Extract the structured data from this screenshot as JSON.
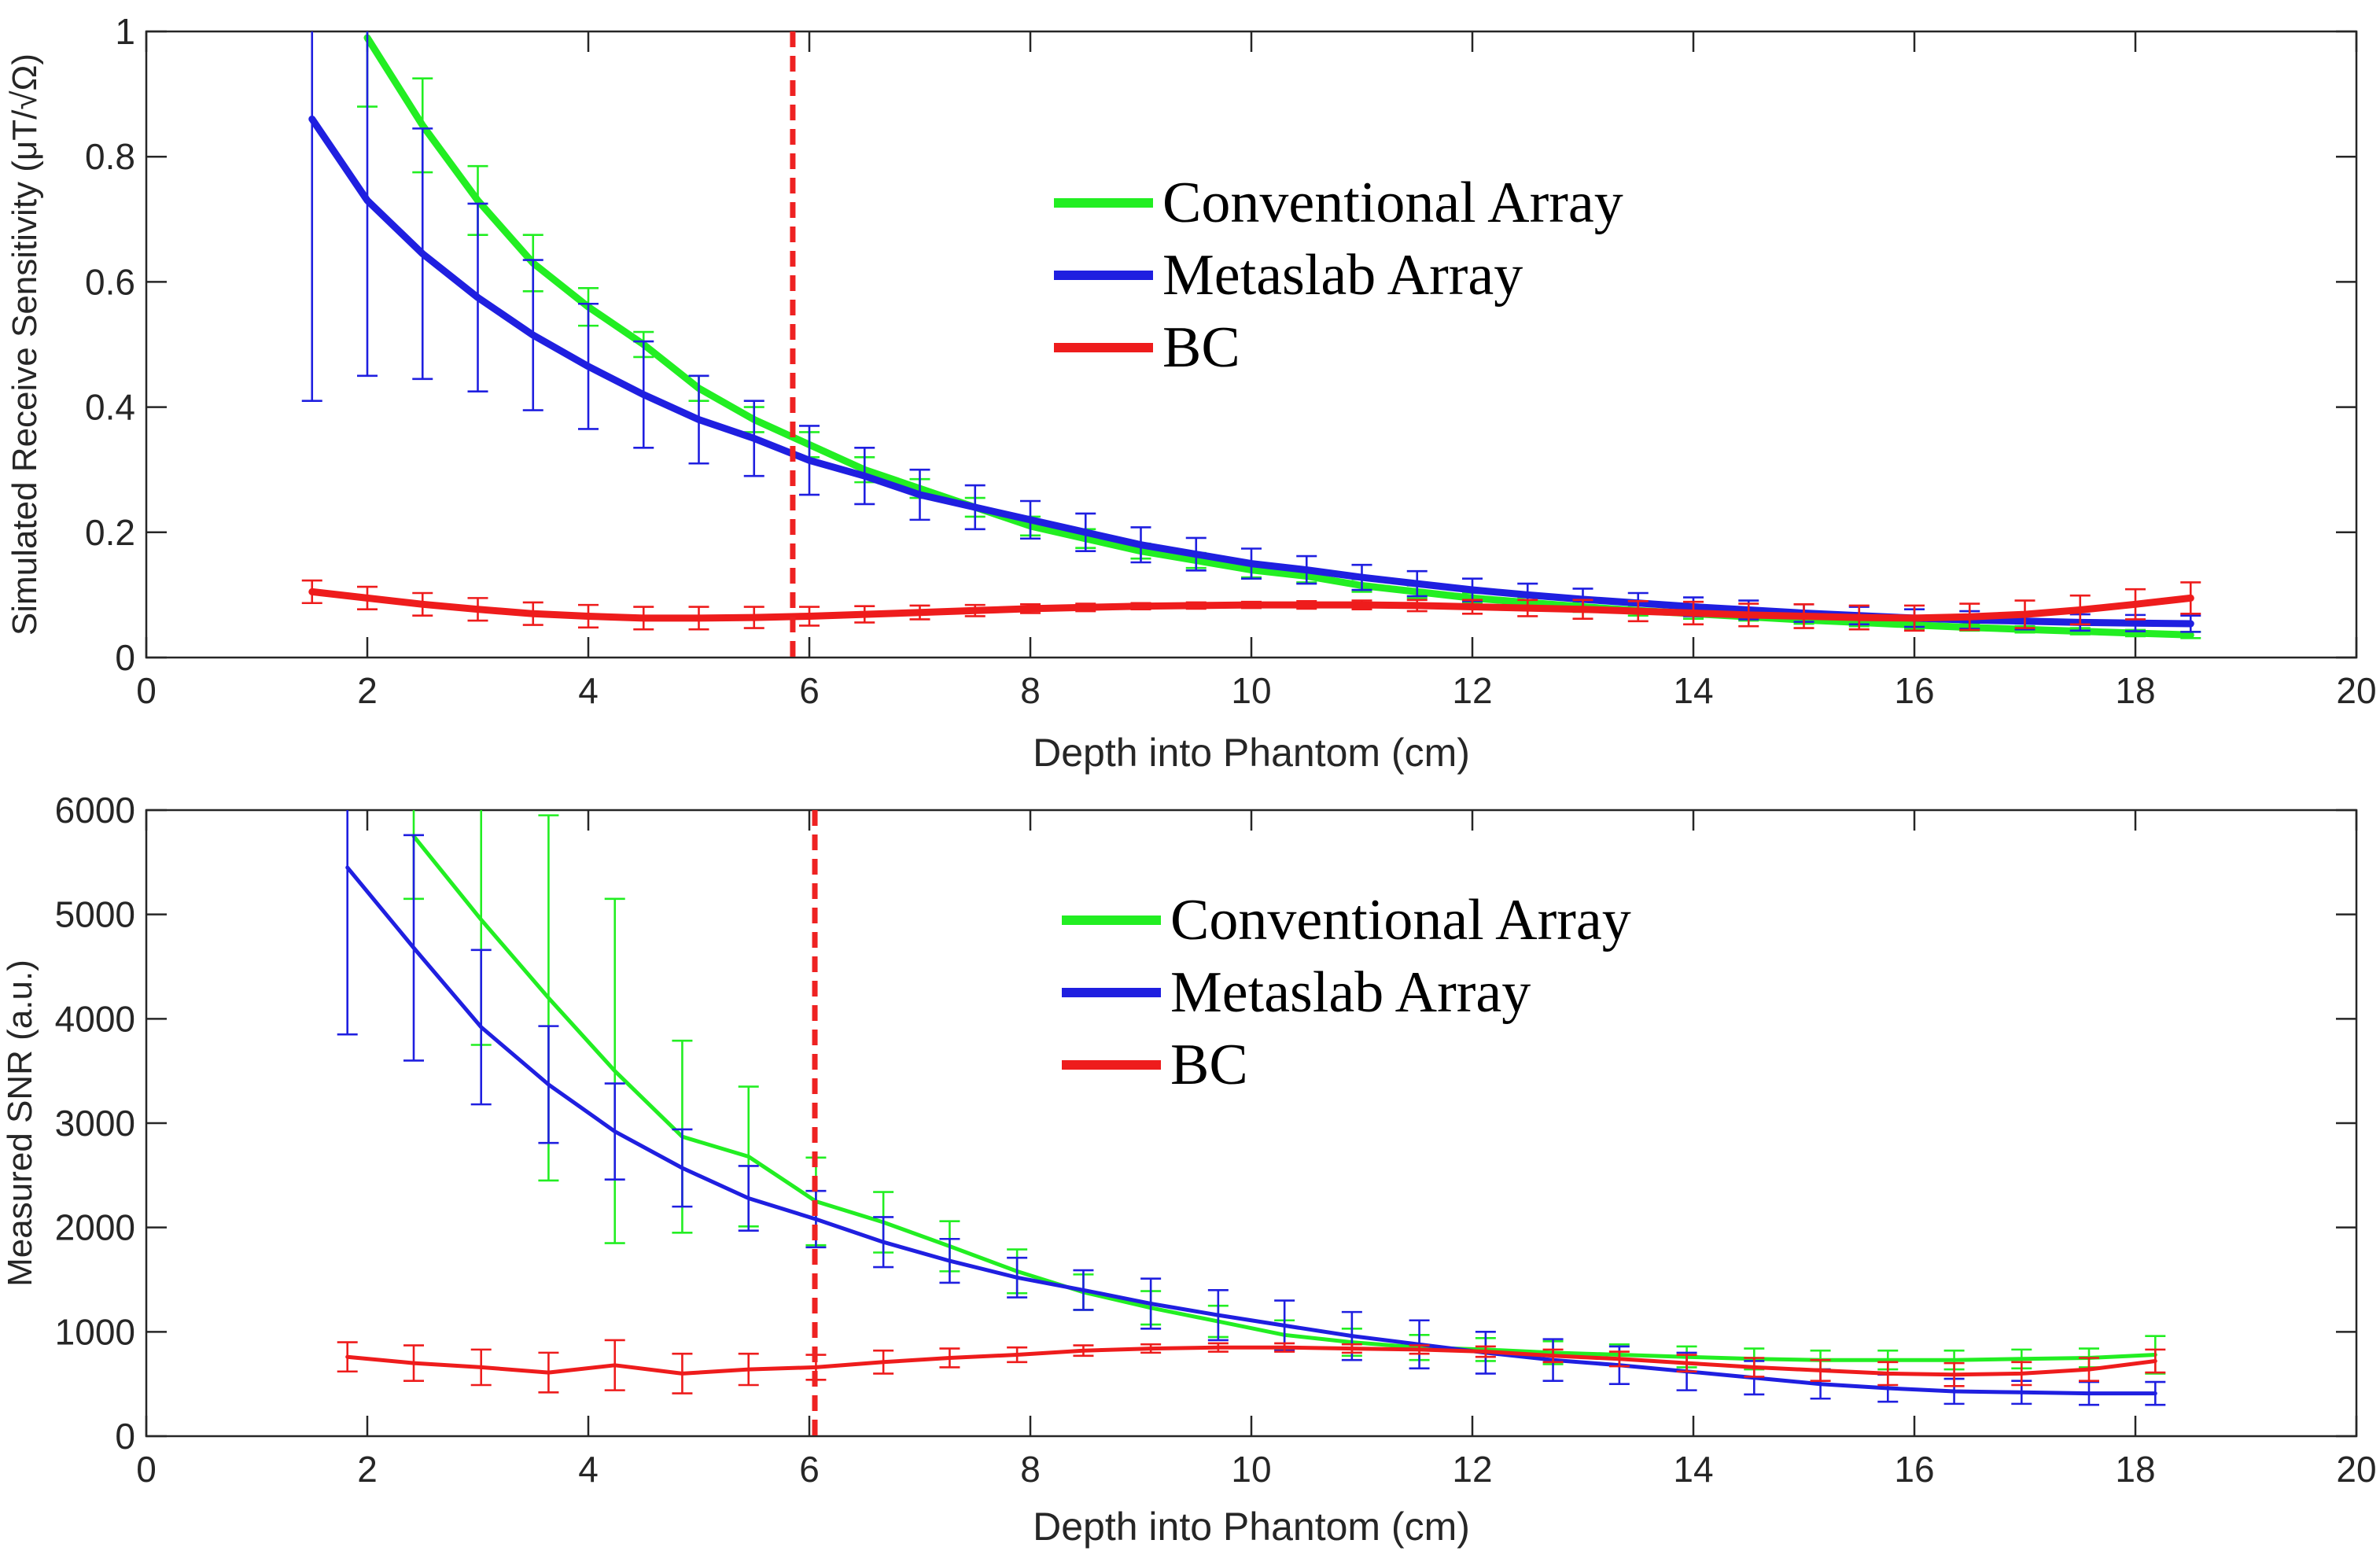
{
  "chart_data": [
    {
      "type": "line",
      "xlabel": "Depth into Phantom (cm)",
      "ylabel": "Simulated Receive Sensitivity (μT/√Ω)",
      "xlim": [
        0,
        20
      ],
      "ylim": [
        0,
        1
      ],
      "xticks": [
        "0",
        "2",
        "4",
        "6",
        "8",
        "10",
        "12",
        "14",
        "16",
        "18",
        "20"
      ],
      "yticks": [
        "0",
        "0.2",
        "0.4",
        "0.6",
        "0.8",
        "1"
      ],
      "grid": false,
      "legend_position": "upper-middle",
      "marker_line": {
        "x": 5.85,
        "style": "dashed",
        "color": "#ee2222"
      },
      "series": [
        {
          "name": "Conventional Array",
          "color": "#22ee22",
          "x": [
            2,
            2.5,
            3,
            3.5,
            4,
            4.5,
            5,
            5.5,
            6,
            6.5,
            7,
            7.5,
            8,
            8.5,
            9,
            9.5,
            10,
            10.5,
            11,
            11.5,
            12,
            12.5,
            13,
            13.5,
            14,
            14.5,
            15,
            15.5,
            16,
            16.5,
            17,
            17.5,
            18,
            18.5
          ],
          "y": [
            0.99,
            0.85,
            0.73,
            0.63,
            0.56,
            0.5,
            0.43,
            0.38,
            0.34,
            0.3,
            0.27,
            0.24,
            0.21,
            0.19,
            0.17,
            0.155,
            0.14,
            0.13,
            0.115,
            0.105,
            0.095,
            0.088,
            0.081,
            0.075,
            0.07,
            0.065,
            0.06,
            0.056,
            0.052,
            0.048,
            0.045,
            0.042,
            0.039,
            0.036
          ],
          "err": [
            0.11,
            0.075,
            0.055,
            0.045,
            0.03,
            0.02,
            0.02,
            0.02,
            0.02,
            0.02,
            0.015,
            0.015,
            0.015,
            0.015,
            0.012,
            0.012,
            0.012,
            0.01,
            0.01,
            0.01,
            0.008,
            0.008,
            0.008,
            0.008,
            0.008,
            0.006,
            0.006,
            0.006,
            0.006,
            0.005,
            0.005,
            0.005,
            0.005,
            0.005
          ]
        },
        {
          "name": "Metaslab Array",
          "color": "#1f1fe0",
          "x": [
            1.5,
            2,
            2.5,
            3,
            3.5,
            4,
            4.5,
            5,
            5.5,
            6,
            6.5,
            7,
            7.5,
            8,
            8.5,
            9,
            9.5,
            10,
            10.5,
            11,
            11.5,
            12,
            12.5,
            13,
            13.5,
            14,
            14.5,
            15,
            15.5,
            16,
            16.5,
            17,
            17.5,
            18,
            18.5
          ],
          "y": [
            0.86,
            0.73,
            0.645,
            0.575,
            0.515,
            0.465,
            0.42,
            0.38,
            0.35,
            0.315,
            0.29,
            0.26,
            0.24,
            0.22,
            0.2,
            0.18,
            0.165,
            0.15,
            0.14,
            0.128,
            0.118,
            0.108,
            0.1,
            0.093,
            0.087,
            0.081,
            0.076,
            0.071,
            0.067,
            0.063,
            0.06,
            0.058,
            0.056,
            0.055,
            0.054
          ],
          "err": [
            0.45,
            0.28,
            0.2,
            0.15,
            0.12,
            0.1,
            0.085,
            0.07,
            0.06,
            0.055,
            0.045,
            0.04,
            0.035,
            0.03,
            0.03,
            0.028,
            0.026,
            0.024,
            0.022,
            0.02,
            0.02,
            0.018,
            0.018,
            0.017,
            0.016,
            0.015,
            0.015,
            0.014,
            0.014,
            0.014,
            0.014,
            0.013,
            0.013,
            0.013,
            0.013
          ]
        },
        {
          "name": "BC",
          "color": "#ee1c1c",
          "x": [
            1.5,
            2,
            2.5,
            3,
            3.5,
            4,
            4.5,
            5,
            5.5,
            6,
            6.5,
            7,
            7.5,
            8,
            8.5,
            9,
            9.5,
            10,
            10.5,
            11,
            11.5,
            12,
            12.5,
            13,
            13.5,
            14,
            14.5,
            15,
            15.5,
            16,
            16.5,
            17,
            17.5,
            18,
            18.5
          ],
          "y": [
            0.105,
            0.095,
            0.085,
            0.077,
            0.07,
            0.066,
            0.063,
            0.063,
            0.064,
            0.066,
            0.069,
            0.072,
            0.075,
            0.078,
            0.08,
            0.082,
            0.083,
            0.084,
            0.084,
            0.084,
            0.083,
            0.081,
            0.079,
            0.077,
            0.074,
            0.071,
            0.068,
            0.066,
            0.064,
            0.063,
            0.065,
            0.069,
            0.076,
            0.085,
            0.095
          ],
          "err": [
            0.018,
            0.018,
            0.018,
            0.018,
            0.018,
            0.018,
            0.018,
            0.018,
            0.017,
            0.015,
            0.013,
            0.011,
            0.009,
            0.007,
            0.006,
            0.005,
            0.005,
            0.005,
            0.006,
            0.007,
            0.009,
            0.011,
            0.013,
            0.015,
            0.016,
            0.018,
            0.018,
            0.019,
            0.019,
            0.02,
            0.021,
            0.022,
            0.023,
            0.024,
            0.025
          ]
        }
      ]
    },
    {
      "type": "line",
      "xlabel": "Depth into Phantom (cm)",
      "ylabel": "Measured SNR (a.u.)",
      "xlim": [
        0,
        20
      ],
      "ylim": [
        0,
        6000
      ],
      "xticks": [
        "0",
        "2",
        "4",
        "6",
        "8",
        "10",
        "12",
        "14",
        "16",
        "18",
        "20"
      ],
      "yticks": [
        "0",
        "1000",
        "2000",
        "3000",
        "4000",
        "5000",
        "6000"
      ],
      "grid": false,
      "legend_position": "upper-middle",
      "marker_line": {
        "x": 6.05,
        "style": "dashed",
        "color": "#ee2222"
      },
      "series": [
        {
          "name": "Conventional Array",
          "color": "#22ee22",
          "x": [
            2.42,
            3.03,
            3.64,
            4.24,
            4.85,
            5.45,
            6.06,
            6.67,
            7.27,
            7.88,
            8.48,
            9.09,
            9.7,
            10.3,
            10.91,
            11.52,
            12.12,
            12.73,
            13.33,
            13.94,
            14.55,
            15.15,
            15.76,
            16.36,
            16.97,
            17.58,
            18.18
          ],
          "y": [
            5750,
            4950,
            4200,
            3500,
            2870,
            2680,
            2250,
            2050,
            1820,
            1580,
            1380,
            1230,
            1100,
            970,
            900,
            850,
            830,
            800,
            780,
            760,
            740,
            730,
            730,
            730,
            740,
            750,
            780
          ],
          "err": [
            600,
            1200,
            1750,
            1650,
            920,
            670,
            420,
            290,
            240,
            210,
            170,
            160,
            150,
            140,
            130,
            120,
            110,
            110,
            100,
            100,
            100,
            90,
            90,
            90,
            90,
            90,
            180
          ]
        },
        {
          "name": "Metaslab Array",
          "color": "#1f1fe0",
          "x": [
            1.82,
            2.42,
            3.03,
            3.64,
            4.24,
            4.85,
            5.45,
            6.06,
            6.67,
            7.27,
            7.88,
            8.48,
            9.09,
            9.7,
            10.3,
            10.91,
            11.52,
            12.12,
            12.73,
            13.33,
            13.94,
            14.55,
            15.15,
            15.76,
            16.36,
            16.97,
            17.58,
            18.18
          ],
          "y": [
            5450,
            4680,
            3920,
            3370,
            2920,
            2570,
            2280,
            2080,
            1860,
            1680,
            1520,
            1400,
            1270,
            1160,
            1060,
            960,
            880,
            800,
            730,
            680,
            620,
            560,
            500,
            460,
            430,
            420,
            410,
            410
          ],
          "err": [
            1600,
            1080,
            740,
            560,
            460,
            370,
            310,
            270,
            240,
            210,
            190,
            190,
            240,
            240,
            240,
            230,
            230,
            200,
            200,
            180,
            180,
            160,
            140,
            130,
            120,
            110,
            110,
            110
          ]
        },
        {
          "name": "BC",
          "color": "#ee1c1c",
          "x": [
            1.82,
            2.42,
            3.03,
            3.64,
            4.24,
            4.85,
            5.45,
            6.06,
            6.67,
            7.27,
            7.88,
            8.48,
            9.09,
            9.7,
            10.3,
            10.91,
            11.52,
            12.12,
            12.73,
            13.33,
            13.94,
            14.55,
            15.15,
            15.76,
            16.36,
            16.97,
            17.58,
            18.18
          ],
          "y": [
            760,
            700,
            660,
            610,
            680,
            600,
            640,
            660,
            710,
            750,
            780,
            820,
            840,
            850,
            850,
            840,
            830,
            810,
            770,
            740,
            700,
            660,
            630,
            600,
            590,
            600,
            640,
            720
          ],
          "err": [
            140,
            170,
            170,
            190,
            240,
            190,
            150,
            120,
            110,
            90,
            70,
            50,
            40,
            40,
            40,
            40,
            40,
            50,
            60,
            70,
            80,
            90,
            100,
            110,
            110,
            110,
            110,
            110
          ]
        }
      ]
    }
  ]
}
